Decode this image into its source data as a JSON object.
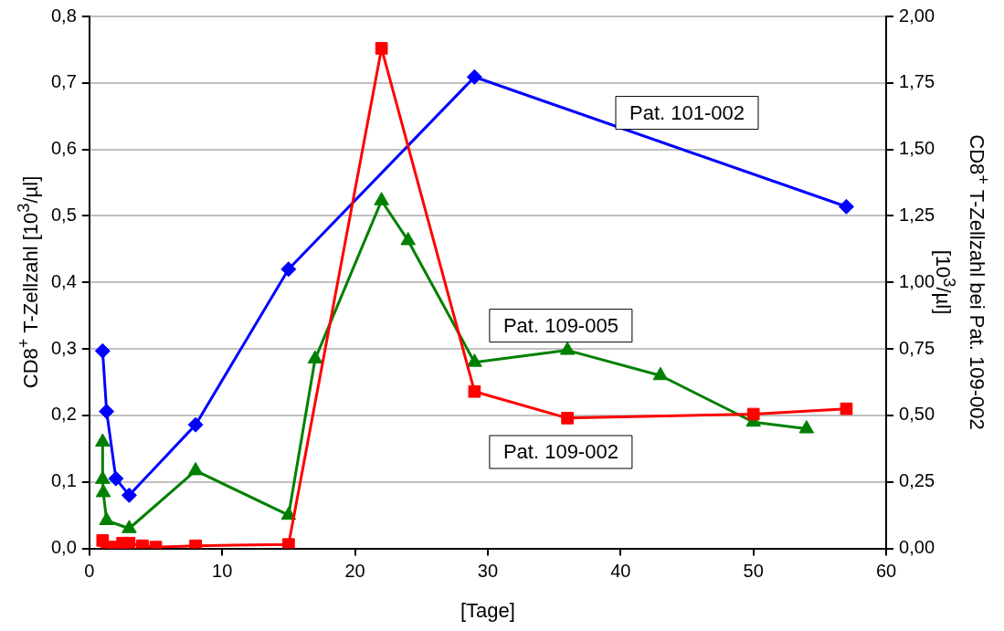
{
  "chart_data": {
    "type": "line",
    "xlabel": "[Tage]",
    "ylabel": "CD8$^{+}$ T-Zellzahl [10$^{3}$/µl]",
    "y2label": "CD8$^{+}$ T-Zellzahl bei Pat. 109-002 [10$^{3}$/µl]",
    "xlim": [
      0,
      60
    ],
    "xticks": [
      0,
      10,
      20,
      30,
      40,
      50,
      60
    ],
    "ylim": [
      0,
      0.8
    ],
    "yticks": [
      {
        "value": 0,
        "label": "0,0"
      },
      {
        "value": 0.1,
        "label": "0,1"
      },
      {
        "value": 0.2,
        "label": "0,2"
      },
      {
        "value": 0.3,
        "label": "0,3"
      },
      {
        "value": 0.4,
        "label": "0,4"
      },
      {
        "value": 0.5,
        "label": "0,5"
      },
      {
        "value": 0.6,
        "label": "0,6"
      },
      {
        "value": 0.7,
        "label": "0,7"
      },
      {
        "value": 0.8,
        "label": "0,8"
      }
    ],
    "y2lim": [
      0,
      2
    ],
    "y2ticks": [
      {
        "value": 0,
        "label": "0,00"
      },
      {
        "value": 0.25,
        "label": "0,25"
      },
      {
        "value": 0.5,
        "label": "0,50"
      },
      {
        "value": 0.75,
        "label": "0,75"
      },
      {
        "value": 1,
        "label": "1,00"
      },
      {
        "value": 1.25,
        "label": "1,25"
      },
      {
        "value": 1.5,
        "label": "1,50"
      },
      {
        "value": 1.75,
        "label": "1,75"
      },
      {
        "value": 2,
        "label": "2,00"
      }
    ],
    "grid": "y",
    "legend": false,
    "line_style": "solid",
    "series": [
      {
        "name": "Pat. 101-002",
        "color": "#0000ff",
        "marker": "diamond",
        "x": [
          1,
          1.3,
          2,
          3,
          8,
          15,
          29,
          57
        ],
        "values": [
          0.297,
          0.206,
          0.105,
          0.08,
          0.186,
          0.42,
          0.709,
          0.514
        ]
      },
      {
        "name": "Pat. 109-005",
        "color": "#008000",
        "marker": "triangle",
        "x": [
          1,
          1,
          1.05,
          1.3,
          3,
          8,
          15,
          17,
          22,
          24,
          29,
          36,
          43,
          50,
          54
        ],
        "values": [
          0.16,
          0.104,
          0.084,
          0.042,
          0.03,
          0.117,
          0.05,
          0.285,
          0.523,
          0.463,
          0.28,
          0.298,
          0.26,
          0.19,
          0.18
        ]
      },
      {
        "name": "Pat. 109-002",
        "color": "#ff0000",
        "marker": "square",
        "axis": "y2",
        "x": [
          1,
          1.3,
          2,
          2.5,
          3,
          4,
          5,
          8,
          15,
          22,
          29,
          36,
          50,
          57
        ],
        "values": [
          0.03,
          0.005,
          0.005,
          0.02,
          0.02,
          0.01,
          0.005,
          0.01,
          0.015,
          1.88,
          0.59,
          0.49,
          0.505,
          0.525
        ]
      }
    ]
  }
}
